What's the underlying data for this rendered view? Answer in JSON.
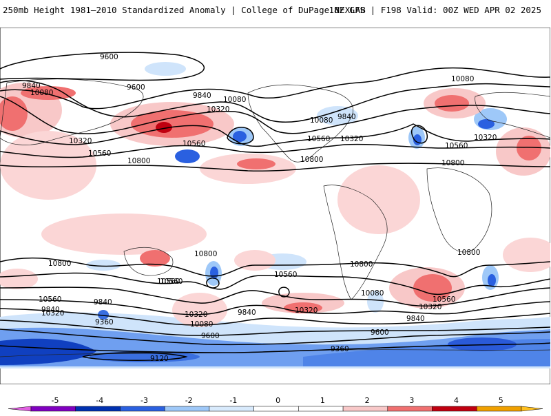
{
  "header": {
    "title_left": "250mb Height 1981—2010 Standardized Anomaly | College of DuPage NEXLAB",
    "title_right": "18Z GFS | F198 Valid: 00Z WED APR 02 2025"
  },
  "colorbar": {
    "ticks": [
      "-5",
      "-4",
      "-3",
      "-2",
      "-1",
      "0",
      "1",
      "2",
      "3",
      "4",
      "5"
    ],
    "colors": [
      "#e060e0",
      "#8000c0",
      "#0030b0",
      "#2a60e0",
      "#9ec8f8",
      "#d8eafc",
      "#ffffff",
      "#ffffff",
      "#f8c8c8",
      "#f07070",
      "#c00010",
      "#f0a000",
      "#ffc020"
    ]
  },
  "contours": {
    "labels": [
      "9600",
      "9840",
      "10080",
      "10320",
      "10560",
      "10800",
      "9120",
      "9360"
    ]
  },
  "map": {
    "labels": [
      {
        "text": "9600"
      },
      {
        "text": "9600"
      },
      {
        "text": "9840"
      },
      {
        "text": "10080"
      },
      {
        "text": "9840"
      },
      {
        "text": "10080"
      },
      {
        "text": "10320"
      },
      {
        "text": "10320"
      },
      {
        "text": "10560"
      },
      {
        "text": "10560"
      },
      {
        "text": "10800"
      },
      {
        "text": "10080"
      },
      {
        "text": "9840"
      },
      {
        "text": "10560"
      },
      {
        "text": "10320"
      },
      {
        "text": "10800"
      },
      {
        "text": "10080"
      },
      {
        "text": "10320"
      },
      {
        "text": "10560"
      },
      {
        "text": "10800"
      },
      {
        "text": "10800"
      },
      {
        "text": "10560"
      },
      {
        "text": "10800"
      },
      {
        "text": "10560"
      },
      {
        "text": "10320"
      },
      {
        "text": "10080"
      },
      {
        "text": "9840"
      },
      {
        "text": "9600"
      },
      {
        "text": "9360"
      },
      {
        "text": "9120"
      },
      {
        "text": "10560"
      },
      {
        "text": "10320"
      },
      {
        "text": "9840"
      },
      {
        "text": "10800"
      },
      {
        "text": "10080"
      },
      {
        "text": "10560"
      },
      {
        "text": "10320"
      },
      {
        "text": "9840"
      },
      {
        "text": "9600"
      },
      {
        "text": "9360"
      },
      {
        "text": "10800"
      },
      {
        "text": "10560"
      },
      {
        "text": "10320"
      },
      {
        "text": "9840"
      }
    ]
  }
}
